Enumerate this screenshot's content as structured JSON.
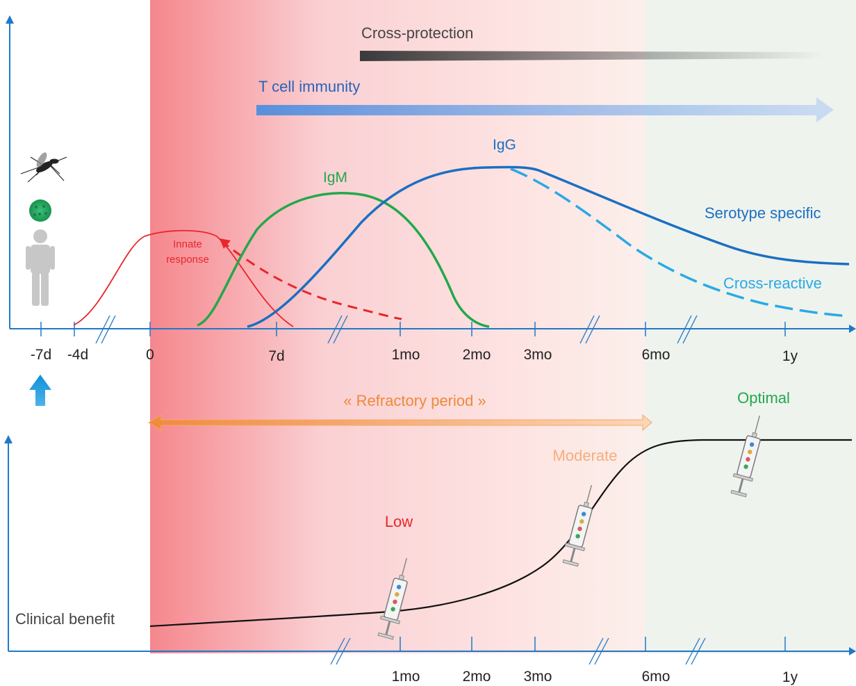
{
  "labels": {
    "cross_protection": "Cross-protection",
    "t_cell_immunity": "T cell immunity",
    "igg": "IgG",
    "igm": "IgM",
    "innate_line1": "Innate",
    "innate_line2": "response",
    "serotype_specific": "Serotype specific",
    "cross_reactive": "Cross-reactive",
    "refractory_period": "« Refractory period »",
    "optimal": "Optimal",
    "moderate": "Moderate",
    "low": "Low",
    "clinical_benefit": "Clinical benefit"
  },
  "timeline_ticks": [
    "-7d",
    "-4d",
    "0",
    "7d",
    "1mo",
    "2mo",
    "3mo",
    "6mo",
    "1y"
  ],
  "benefit_ticks": [
    "1mo",
    "2mo",
    "3mo",
    "6mo",
    "1y"
  ],
  "colors": {
    "axis": "#1f78c8",
    "innate": "#e8262b",
    "igm": "#22a84a",
    "igg": "#1b6fc2",
    "cross_reactive": "#29a9e6",
    "refractory": "#f0883a",
    "moderate": "#f6ad7d",
    "benefit_curve": "#111111",
    "t_cell": "#3470c4",
    "cross_protection": "#555555",
    "late_phase_bg": "#eef3ee"
  },
  "icons": {
    "vector": "mosquito-icon",
    "virus": "virus-particle-icon",
    "person": "person-icon",
    "exposure": "up-arrow-icon",
    "vaccine": "syringe-icon"
  }
}
